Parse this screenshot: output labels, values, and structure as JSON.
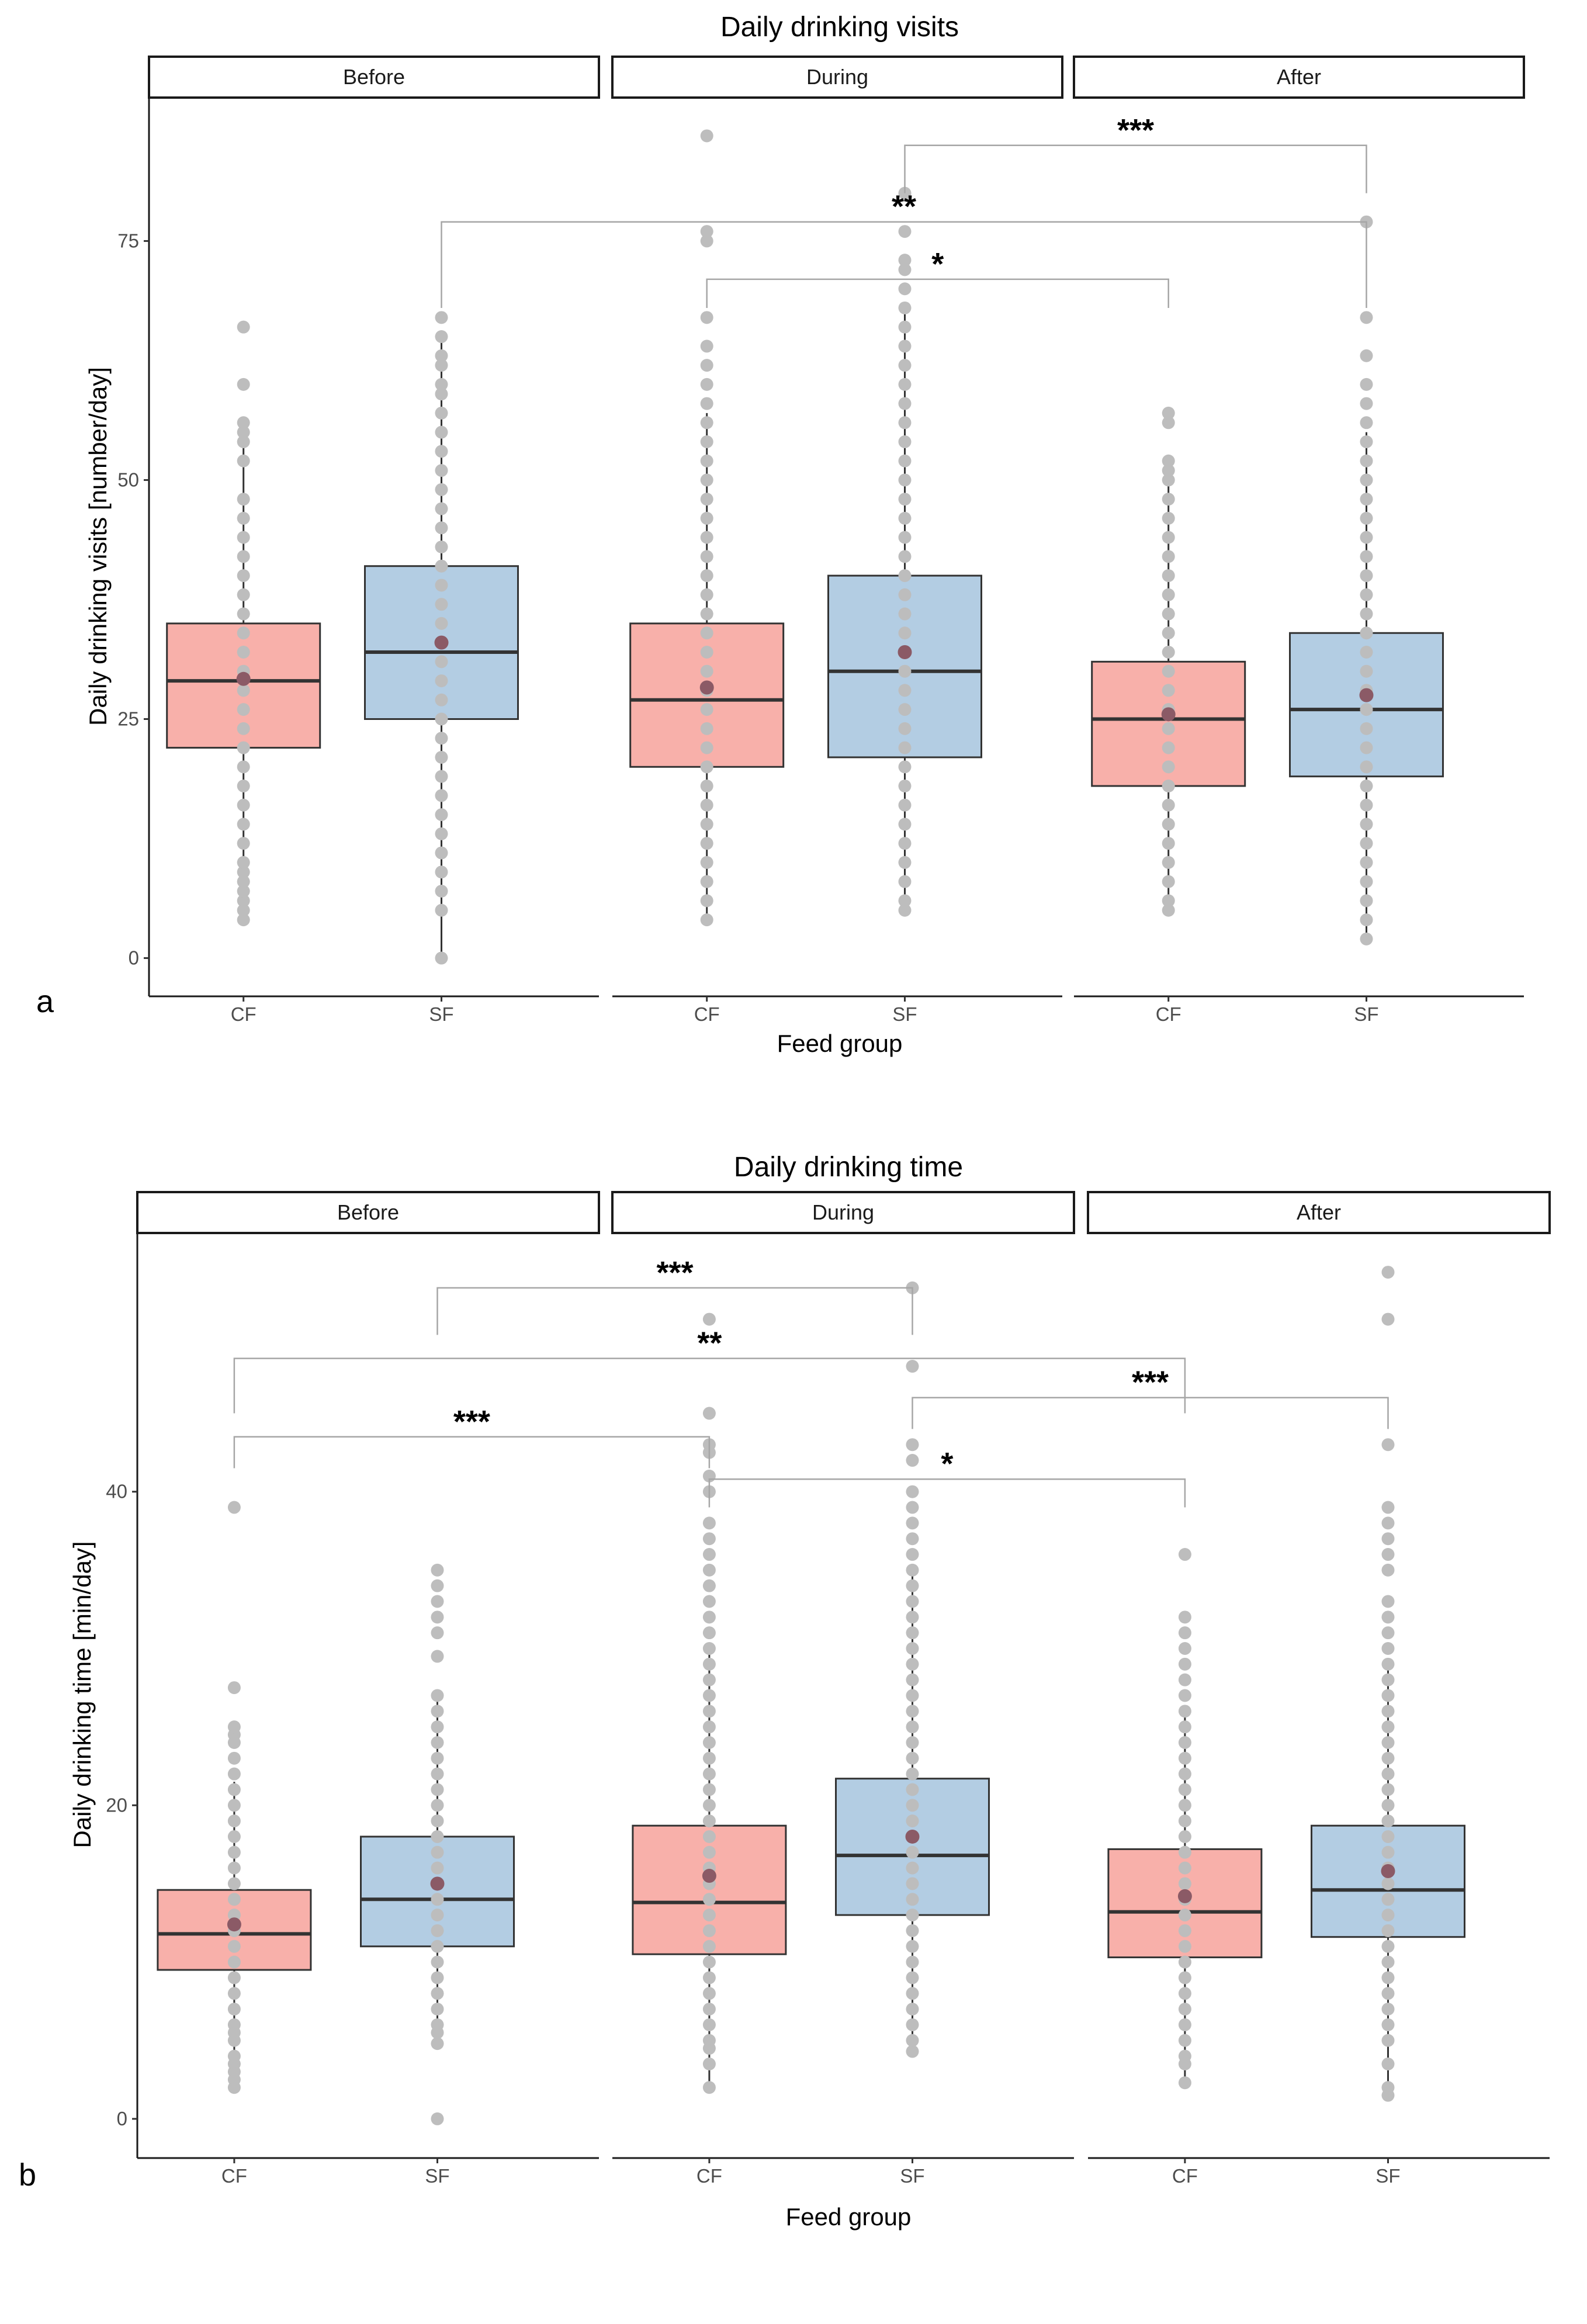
{
  "chart_data": [
    {
      "type": "boxplot",
      "panel_label": "a",
      "title": "Daily drinking visits",
      "xlabel": "Feed group",
      "ylabel": "Daily drinking visits [number/day]",
      "ylim": [
        -4,
        90
      ],
      "yticks": [
        0,
        25,
        50,
        75
      ],
      "facets": [
        "Before",
        "During",
        "After"
      ],
      "categories": [
        "CF",
        "SF"
      ],
      "colors": {
        "CF": "#f8b0aa",
        "SF": "#b3cde3"
      },
      "boxes": [
        {
          "facet": "Before",
          "group": "CF",
          "q1": 22,
          "median": 29,
          "q3": 35,
          "whisker_low": 4,
          "whisker_high": 54,
          "mean": 29.2,
          "points": [
            4,
            5,
            6,
            7,
            8,
            9,
            10,
            12,
            14,
            16,
            18,
            20,
            22,
            24,
            26,
            28,
            30,
            32,
            34,
            36,
            38,
            40,
            42,
            44,
            46,
            48,
            52,
            54,
            55,
            56,
            60,
            66
          ]
        },
        {
          "facet": "Before",
          "group": "SF",
          "q1": 25,
          "median": 32,
          "q3": 41,
          "whisker_low": 0,
          "whisker_high": 65,
          "mean": 33,
          "points": [
            0,
            5,
            7,
            9,
            11,
            13,
            15,
            17,
            19,
            21,
            23,
            25,
            27,
            29,
            31,
            33,
            35,
            37,
            39,
            41,
            43,
            45,
            47,
            49,
            51,
            53,
            55,
            57,
            59,
            60,
            62,
            63,
            65,
            67
          ]
        },
        {
          "facet": "During",
          "group": "CF",
          "q1": 20,
          "median": 27,
          "q3": 35,
          "whisker_low": 4,
          "whisker_high": 57,
          "mean": 28.3,
          "points": [
            4,
            6,
            8,
            10,
            12,
            14,
            16,
            18,
            20,
            22,
            24,
            26,
            28,
            30,
            32,
            34,
            36,
            38,
            40,
            42,
            44,
            46,
            48,
            50,
            52,
            54,
            56,
            58,
            60,
            62,
            64,
            67,
            75,
            76,
            86
          ]
        },
        {
          "facet": "During",
          "group": "SF",
          "q1": 21,
          "median": 30,
          "q3": 40,
          "whisker_low": 5,
          "whisker_high": 68,
          "mean": 32,
          "points": [
            5,
            6,
            8,
            10,
            12,
            14,
            16,
            18,
            20,
            22,
            24,
            26,
            28,
            30,
            32,
            34,
            36,
            38,
            40,
            42,
            44,
            46,
            48,
            50,
            52,
            54,
            56,
            58,
            60,
            62,
            64,
            66,
            68,
            70,
            72,
            73,
            76,
            80
          ]
        },
        {
          "facet": "After",
          "group": "CF",
          "q1": 18,
          "median": 25,
          "q3": 31,
          "whisker_low": 5,
          "whisker_high": 50,
          "mean": 25.5,
          "points": [
            5,
            6,
            8,
            10,
            12,
            14,
            16,
            18,
            20,
            22,
            24,
            26,
            28,
            30,
            32,
            34,
            36,
            38,
            40,
            42,
            44,
            46,
            48,
            50,
            51,
            52,
            56,
            57
          ]
        },
        {
          "facet": "After",
          "group": "SF",
          "q1": 19,
          "median": 26,
          "q3": 34,
          "whisker_low": 2,
          "whisker_high": 55,
          "mean": 27.5,
          "points": [
            2,
            4,
            6,
            8,
            10,
            12,
            14,
            16,
            18,
            20,
            22,
            24,
            26,
            28,
            30,
            32,
            34,
            36,
            38,
            40,
            42,
            44,
            46,
            48,
            50,
            52,
            54,
            56,
            58,
            60,
            63,
            67,
            77
          ]
        }
      ],
      "significance": [
        {
          "from": [
            "During",
            "SF"
          ],
          "to": [
            "After",
            "SF"
          ],
          "y": 85,
          "label": "***",
          "drop_from": 80,
          "drop_to": 80
        },
        {
          "from": [
            "Before",
            "SF"
          ],
          "to": [
            "After",
            "SF"
          ],
          "y": 77,
          "label": "**",
          "drop_from": 68,
          "drop_to": 68
        },
        {
          "from": [
            "During",
            "CF"
          ],
          "to": [
            "After",
            "CF"
          ],
          "y": 71,
          "label": "*",
          "drop_from": 68,
          "drop_to": 68
        }
      ]
    },
    {
      "type": "boxplot",
      "panel_label": "b",
      "title": "Daily drinking time",
      "xlabel": "Feed group",
      "ylabel": "Daily drinking time [min/day]",
      "ylim": [
        -2.5,
        56.5
      ],
      "yticks": [
        0,
        20,
        40
      ],
      "facets": [
        "Before",
        "During",
        "After"
      ],
      "categories": [
        "CF",
        "SF"
      ],
      "colors": {
        "CF": "#f8b0aa",
        "SF": "#b3cde3"
      },
      "boxes": [
        {
          "facet": "Before",
          "group": "CF",
          "q1": 9.5,
          "median": 11.8,
          "q3": 14.6,
          "whisker_low": 2,
          "whisker_high": 21.5,
          "mean": 12.4,
          "points": [
            2,
            2.5,
            3,
            3.5,
            4,
            5,
            5.5,
            6,
            7,
            8,
            9,
            10,
            11,
            12,
            13,
            14,
            15,
            16,
            17,
            18,
            19,
            20,
            21,
            22,
            23,
            24,
            24.5,
            25,
            27.5,
            39
          ]
        },
        {
          "facet": "Before",
          "group": "SF",
          "q1": 11,
          "median": 14,
          "q3": 18,
          "whisker_low": 4.8,
          "whisker_high": 27,
          "mean": 15,
          "points": [
            0,
            4.8,
            5.5,
            6,
            7,
            8,
            9,
            10,
            11,
            12,
            13,
            14,
            15,
            16,
            17,
            18,
            19,
            20,
            21,
            22,
            23,
            24,
            25,
            26,
            27,
            29.5,
            31,
            32,
            33,
            34,
            35
          ]
        },
        {
          "facet": "During",
          "group": "CF",
          "q1": 10.5,
          "median": 13.8,
          "q3": 18.7,
          "whisker_low": 2,
          "whisker_high": 30,
          "mean": 15.5,
          "points": [
            2,
            3.5,
            4.5,
            5,
            6,
            7,
            8,
            9,
            10,
            11,
            12,
            13,
            14,
            15,
            16,
            17,
            18,
            19,
            20,
            21,
            22,
            23,
            24,
            25,
            26,
            27,
            28,
            29,
            30,
            31,
            32,
            33,
            34,
            35,
            36,
            37,
            38,
            40,
            41,
            42.5,
            43,
            45,
            51
          ]
        },
        {
          "facet": "During",
          "group": "SF",
          "q1": 13,
          "median": 16.8,
          "q3": 21.7,
          "whisker_low": 4.3,
          "whisker_high": 35,
          "mean": 18,
          "points": [
            4.3,
            5,
            6,
            7,
            8,
            9,
            10,
            11,
            12,
            13,
            14,
            15,
            16,
            17,
            18,
            19,
            20,
            21,
            22,
            23,
            24,
            25,
            26,
            27,
            28,
            29,
            30,
            31,
            32,
            33,
            34,
            35,
            36,
            37,
            38,
            39,
            40,
            42,
            43,
            48,
            53
          ]
        },
        {
          "facet": "After",
          "group": "CF",
          "q1": 10.3,
          "median": 13.2,
          "q3": 17.2,
          "whisker_low": 2.3,
          "whisker_high": 26,
          "mean": 14.2,
          "points": [
            2.3,
            3.5,
            4,
            5,
            6,
            7,
            8,
            9,
            10,
            11,
            12,
            13,
            14,
            15,
            16,
            17,
            18,
            19,
            20,
            21,
            22,
            23,
            24,
            25,
            26,
            27,
            28,
            29,
            30,
            31,
            32,
            36
          ]
        },
        {
          "facet": "After",
          "group": "SF",
          "q1": 11.6,
          "median": 14.6,
          "q3": 18.7,
          "whisker_low": 1.5,
          "whisker_high": 29,
          "mean": 15.8,
          "points": [
            1.5,
            2,
            3.5,
            5,
            6,
            7,
            8,
            9,
            10,
            11,
            12,
            13,
            14,
            15,
            16,
            17,
            18,
            19,
            20,
            21,
            22,
            23,
            24,
            25,
            26,
            27,
            28,
            29,
            30,
            31,
            32,
            33,
            35,
            36,
            37,
            38,
            39,
            43,
            51,
            54
          ]
        }
      ],
      "significance": [
        {
          "from": [
            "Before",
            "SF"
          ],
          "to": [
            "During",
            "SF"
          ],
          "y": 53,
          "label": "***",
          "drop_from": 50,
          "drop_to": 50
        },
        {
          "from": [
            "Before",
            "CF"
          ],
          "to": [
            "After",
            "CF"
          ],
          "y": 48.5,
          "label": "**",
          "drop_from": 45,
          "drop_to": 45
        },
        {
          "from": [
            "During",
            "SF"
          ],
          "to": [
            "After",
            "SF"
          ],
          "y": 46,
          "label": "***",
          "drop_from": 44,
          "drop_to": 44
        },
        {
          "from": [
            "Before",
            "CF"
          ],
          "to": [
            "During",
            "CF"
          ],
          "y": 43.5,
          "label": "***",
          "drop_from": 41.5,
          "drop_to": 41.5
        },
        {
          "from": [
            "During",
            "CF"
          ],
          "to": [
            "After",
            "CF"
          ],
          "y": 40.8,
          "label": "*",
          "drop_from": 39,
          "drop_to": 39
        }
      ]
    }
  ]
}
